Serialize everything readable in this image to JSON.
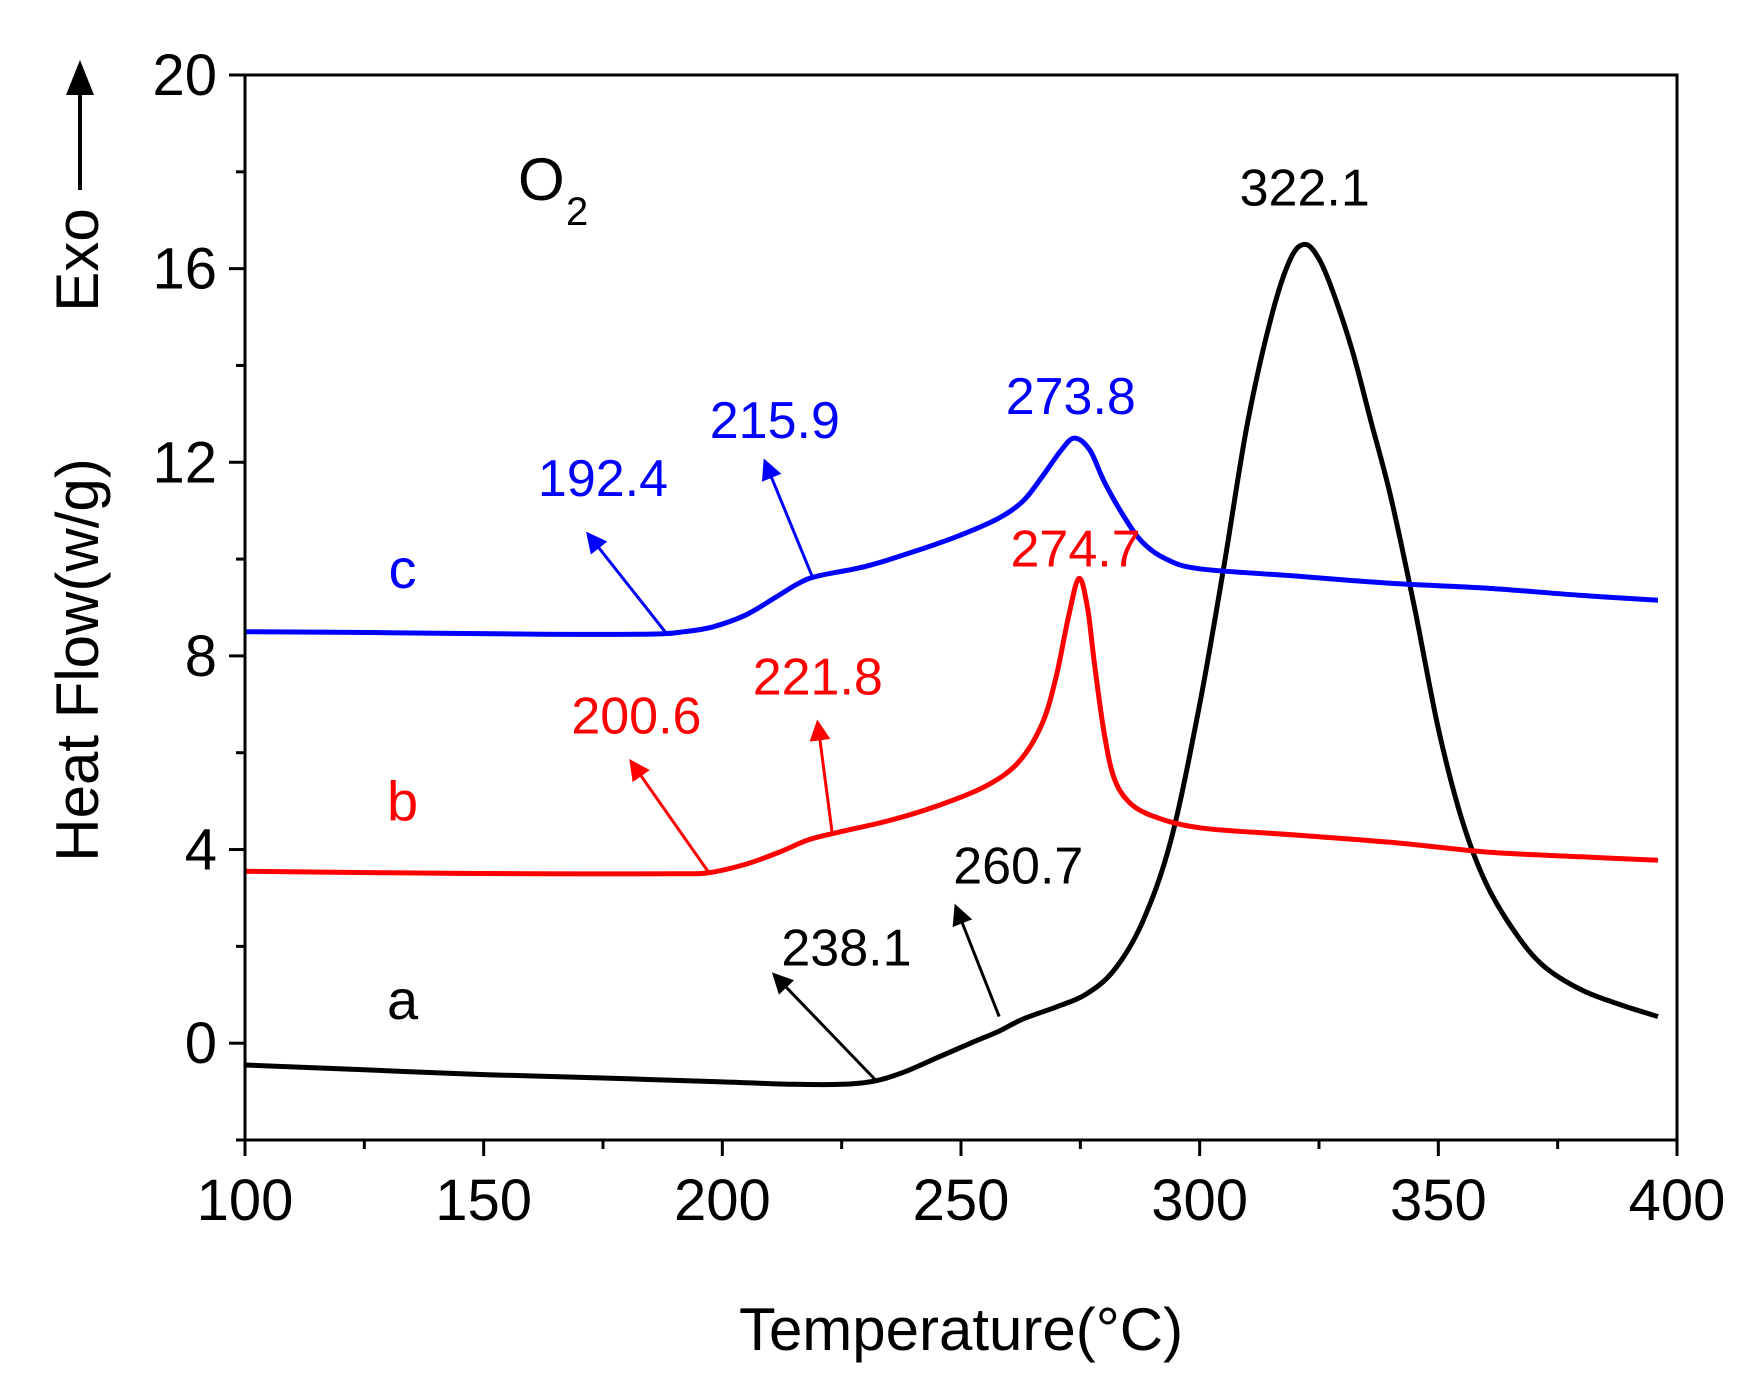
{
  "chart_data": {
    "type": "line",
    "xlabel": "Temperature(°C)",
    "ylabel": "Heat Flow(w/g)",
    "ylabel_suffix": "Exo",
    "gas_main": "O",
    "gas_sub": "2",
    "xlim": [
      100,
      400
    ],
    "ylim": [
      -2,
      20
    ],
    "x_ticks": [
      100,
      150,
      200,
      250,
      300,
      350,
      400
    ],
    "y_ticks": [
      0,
      4,
      8,
      12,
      16,
      20
    ],
    "x_tick_labels": [
      "100",
      "150",
      "200",
      "250",
      "300",
      "350",
      "400"
    ],
    "y_tick_labels": [
      "0",
      "4",
      "8",
      "12",
      "16",
      "20"
    ],
    "series": [
      {
        "name": "a",
        "color": "#000000",
        "points": [
          [
            100,
            -0.45
          ],
          [
            125,
            -0.55
          ],
          [
            150,
            -0.65
          ],
          [
            175,
            -0.72
          ],
          [
            200,
            -0.8
          ],
          [
            215,
            -0.85
          ],
          [
            225,
            -0.85
          ],
          [
            232,
            -0.78
          ],
          [
            238,
            -0.6
          ],
          [
            245,
            -0.3
          ],
          [
            252,
            0.0
          ],
          [
            258,
            0.25
          ],
          [
            263,
            0.5
          ],
          [
            270,
            0.75
          ],
          [
            276,
            1.0
          ],
          [
            282,
            1.5
          ],
          [
            288,
            2.5
          ],
          [
            294,
            4.2
          ],
          [
            300,
            7.0
          ],
          [
            305,
            9.8
          ],
          [
            310,
            12.8
          ],
          [
            315,
            15.0
          ],
          [
            319,
            16.2
          ],
          [
            322.1,
            16.5
          ],
          [
            325,
            16.2
          ],
          [
            328,
            15.5
          ],
          [
            332,
            14.3
          ],
          [
            336,
            12.8
          ],
          [
            340,
            11.3
          ],
          [
            345,
            9.0
          ],
          [
            350,
            6.5
          ],
          [
            355,
            4.6
          ],
          [
            360,
            3.3
          ],
          [
            366,
            2.3
          ],
          [
            372,
            1.6
          ],
          [
            380,
            1.1
          ],
          [
            388,
            0.8
          ],
          [
            396,
            0.55
          ]
        ]
      },
      {
        "name": "b",
        "color": "#ff0000",
        "points": [
          [
            100,
            3.55
          ],
          [
            130,
            3.52
          ],
          [
            160,
            3.5
          ],
          [
            190,
            3.5
          ],
          [
            197,
            3.52
          ],
          [
            205,
            3.7
          ],
          [
            212,
            3.95
          ],
          [
            218,
            4.2
          ],
          [
            224,
            4.35
          ],
          [
            235,
            4.6
          ],
          [
            245,
            4.9
          ],
          [
            255,
            5.3
          ],
          [
            262,
            5.8
          ],
          [
            267,
            6.6
          ],
          [
            270,
            7.6
          ],
          [
            272.5,
            8.8
          ],
          [
            274.7,
            9.6
          ],
          [
            276.5,
            9.0
          ],
          [
            278,
            7.8
          ],
          [
            280,
            6.4
          ],
          [
            282,
            5.5
          ],
          [
            285,
            5.0
          ],
          [
            290,
            4.7
          ],
          [
            300,
            4.45
          ],
          [
            320,
            4.3
          ],
          [
            340,
            4.15
          ],
          [
            360,
            3.95
          ],
          [
            380,
            3.85
          ],
          [
            396,
            3.78
          ]
        ]
      },
      {
        "name": "c",
        "color": "#0000ff",
        "points": [
          [
            100,
            8.5
          ],
          [
            130,
            8.48
          ],
          [
            160,
            8.45
          ],
          [
            185,
            8.45
          ],
          [
            192,
            8.5
          ],
          [
            198,
            8.6
          ],
          [
            205,
            8.85
          ],
          [
            211,
            9.2
          ],
          [
            216,
            9.5
          ],
          [
            220,
            9.65
          ],
          [
            230,
            9.85
          ],
          [
            240,
            10.15
          ],
          [
            250,
            10.5
          ],
          [
            258,
            10.85
          ],
          [
            263,
            11.2
          ],
          [
            267,
            11.7
          ],
          [
            271,
            12.25
          ],
          [
            273.8,
            12.5
          ],
          [
            277,
            12.25
          ],
          [
            280,
            11.6
          ],
          [
            284,
            10.9
          ],
          [
            288,
            10.35
          ],
          [
            293,
            10.0
          ],
          [
            300,
            9.8
          ],
          [
            320,
            9.65
          ],
          [
            340,
            9.5
          ],
          [
            360,
            9.4
          ],
          [
            380,
            9.25
          ],
          [
            396,
            9.15
          ]
        ]
      }
    ],
    "series_labels": [
      {
        "text": "a",
        "color": "#000000",
        "x": 133,
        "y": 0.5
      },
      {
        "text": "b",
        "color": "#ff0000",
        "x": 133,
        "y": 4.6
      },
      {
        "text": "c",
        "color": "#0000ff",
        "x": 133,
        "y": 9.4
      }
    ],
    "annotations": [
      {
        "text": "322.1",
        "color": "#000000",
        "label_x": 322,
        "label_y": 17.3
      },
      {
        "text": "238.1",
        "color": "#000000",
        "label_x": 226,
        "label_y": 1.6,
        "arrow_from": [
          232,
          -0.75
        ],
        "arrow_to": [
          211,
          1.4
        ]
      },
      {
        "text": "260.7",
        "color": "#000000",
        "label_x": 262,
        "label_y": 3.3,
        "arrow_from": [
          258,
          0.55
        ],
        "arrow_to": [
          249,
          2.8
        ]
      },
      {
        "text": "274.7",
        "color": "#ff0000",
        "label_x": 274,
        "label_y": 9.85
      },
      {
        "text": "200.6",
        "color": "#ff0000",
        "label_x": 182,
        "label_y": 6.4,
        "arrow_from": [
          197,
          3.55
        ],
        "arrow_to": [
          181,
          5.8
        ]
      },
      {
        "text": "221.8",
        "color": "#ff0000",
        "label_x": 220,
        "label_y": 7.2,
        "arrow_from": [
          223,
          4.35
        ],
        "arrow_to": [
          220,
          6.6
        ]
      },
      {
        "text": "273.8",
        "color": "#0000ff",
        "label_x": 273,
        "label_y": 13.0
      },
      {
        "text": "192.4",
        "color": "#0000ff",
        "label_x": 175,
        "label_y": 11.3,
        "arrow_from": [
          188,
          8.5
        ],
        "arrow_to": [
          172,
          10.5
        ]
      },
      {
        "text": "215.9",
        "color": "#0000ff",
        "label_x": 211,
        "label_y": 12.5,
        "arrow_from": [
          219,
          9.6
        ],
        "arrow_to": [
          209,
          12.0
        ]
      }
    ]
  }
}
